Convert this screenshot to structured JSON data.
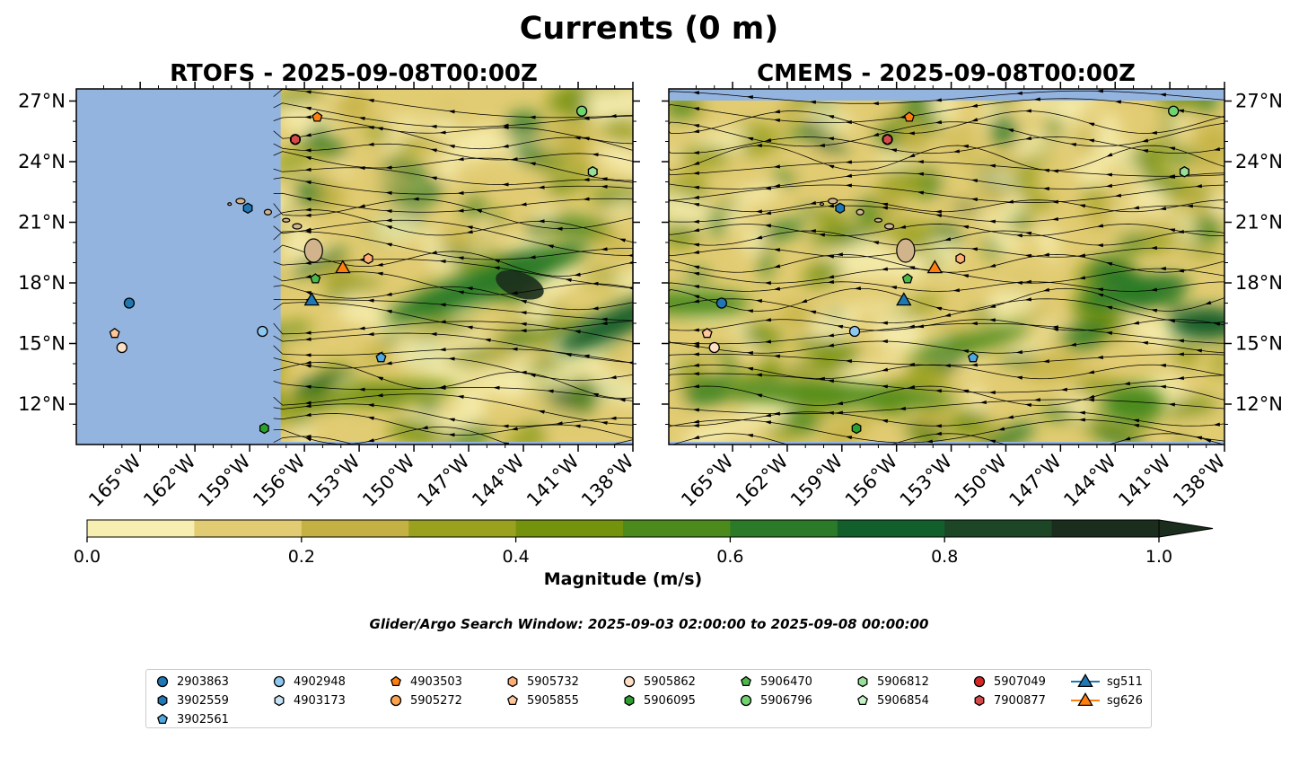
{
  "chart_data": {
    "type": "heatmap",
    "title": "Currents (0 m)",
    "panels": [
      {
        "title": "RTOFS - 2025-09-08T00:00Z",
        "model": "RTOFS"
      },
      {
        "title": "CMEMS - 2025-09-08T00:00Z",
        "model": "CMEMS"
      }
    ],
    "lon_range": [
      -168.5,
      -138
    ],
    "lat_range": [
      10,
      27.6
    ],
    "x_ticks": [
      "165°W",
      "162°W",
      "159°W",
      "156°W",
      "153°W",
      "150°W",
      "147°W",
      "144°W",
      "141°W",
      "138°W"
    ],
    "x_tick_values": [
      -165,
      -162,
      -159,
      -156,
      -153,
      -150,
      -147,
      -144,
      -141,
      -138
    ],
    "y_ticks": [
      "27°N",
      "24°N",
      "21°N",
      "18°N",
      "15°N",
      "12°N"
    ],
    "y_tick_values": [
      27,
      24,
      21,
      18,
      15,
      12
    ],
    "colorbar": {
      "label": "Magnitude (m/s)",
      "range": [
        0,
        1.0
      ],
      "ticks": [
        "0.0",
        "0.2",
        "0.4",
        "0.6",
        "0.8",
        "1.0"
      ],
      "tick_values": [
        0,
        0.2,
        0.4,
        0.6,
        0.8,
        1.0
      ],
      "levels": [
        0,
        0.1,
        0.2,
        0.3,
        0.4,
        0.5,
        0.6,
        0.7,
        0.8,
        0.9,
        1.0
      ],
      "colors": [
        "#f7eeb1",
        "#e2cc73",
        "#c3b143",
        "#99a11f",
        "#75920c",
        "#4c8a1c",
        "#2b7a27",
        "#135f2c",
        "#1c4626",
        "#1b2d1c"
      ],
      "extend": "max"
    },
    "platforms": [
      {
        "id": "2903863",
        "marker": "circle",
        "color": "#1f77b4",
        "lon": -165.6,
        "lat": 17.0
      },
      {
        "id": "3902559",
        "marker": "hexagon",
        "color": "#1f77b4",
        "lon": -159.1,
        "lat": 21.7
      },
      {
        "id": "3902561",
        "marker": "pentagon",
        "color": "#4fa8e0",
        "lon": -151.8,
        "lat": 14.3
      },
      {
        "id": "4902948",
        "marker": "circle",
        "color": "#8fc8ef",
        "lon": -158.3,
        "lat": 15.6
      },
      {
        "id": "4903173",
        "marker": "hexagon",
        "color": "#c6e3f7",
        "lon": -140.2,
        "lat": 23.5
      },
      {
        "id": "4903503",
        "marker": "pentagon",
        "color": "#ff7f0e",
        "lon": -155.3,
        "lat": 26.2
      },
      {
        "id": "5905272",
        "marker": "circle",
        "color": "#ffa24c",
        "lon": -141.0,
        "lat": 26.5
      },
      {
        "id": "5905732",
        "marker": "hexagon",
        "color": "#ffad72",
        "lon": -152.5,
        "lat": 19.2
      },
      {
        "id": "5905855",
        "marker": "pentagon",
        "color": "#ffc79a",
        "lon": -166.4,
        "lat": 15.5
      },
      {
        "id": "5905862",
        "marker": "circle",
        "color": "#fde0c5",
        "lon": -166.0,
        "lat": 14.8
      },
      {
        "id": "5906095",
        "marker": "hexagon",
        "color": "#2ca02c",
        "lon": -158.2,
        "lat": 10.8
      },
      {
        "id": "5906470",
        "marker": "pentagon",
        "color": "#4cb84c",
        "lon": -155.4,
        "lat": 18.2
      },
      {
        "id": "5906796",
        "marker": "circle",
        "color": "#6fd36f",
        "lon": -140.8,
        "lat": 26.5
      },
      {
        "id": "5906812",
        "marker": "hexagon",
        "color": "#98e098",
        "lon": -140.2,
        "lat": 23.5
      },
      {
        "id": "5906854",
        "marker": "pentagon",
        "color": "#c6f2c6",
        "lon": -140.8,
        "lat": 26.5
      },
      {
        "id": "5907049",
        "marker": "circle",
        "color": "#d62728",
        "lon": -156.5,
        "lat": 25.1
      },
      {
        "id": "7900877",
        "marker": "hexagon",
        "color": "#d84a4a",
        "lon": -156.5,
        "lat": 25.1
      },
      {
        "id": "sg511",
        "marker": "triangle",
        "color": "#1f77b4",
        "lon": -155.6,
        "lat": 17.1
      },
      {
        "id": "sg626",
        "marker": "triangle",
        "color": "#ff7f0e",
        "lon": -153.9,
        "lat": 18.7
      }
    ],
    "legend_placement": "bottom-center"
  },
  "colorbar_label": "Magnitude (m/s)",
  "search_window": "Glider/Argo Search Window: 2025-09-03 02:00:00 to 2025-09-08 00:00:00",
  "legend": [
    {
      "label": "2903863",
      "marker": "circle",
      "color": "#1f77b4"
    },
    {
      "label": "3902559",
      "marker": "hexagon",
      "color": "#1f77b4"
    },
    {
      "label": "3902561",
      "marker": "pentagon",
      "color": "#4fa8e0"
    },
    {
      "label": "4902948",
      "marker": "circle",
      "color": "#8fc8ef"
    },
    {
      "label": "4903173",
      "marker": "hexagon",
      "color": "#c6e3f7"
    },
    {
      "label": "4903503",
      "marker": "pentagon",
      "color": "#ff7f0e"
    },
    {
      "label": "5905272",
      "marker": "circle",
      "color": "#ffa24c"
    },
    {
      "label": "5905732",
      "marker": "hexagon",
      "color": "#ffad72"
    },
    {
      "label": "5905855",
      "marker": "pentagon",
      "color": "#ffc79a"
    },
    {
      "label": "5905862",
      "marker": "circle",
      "color": "#fde0c5"
    },
    {
      "label": "5906095",
      "marker": "hexagon",
      "color": "#2ca02c"
    },
    {
      "label": "5906470",
      "marker": "pentagon",
      "color": "#4cb84c"
    },
    {
      "label": "5906796",
      "marker": "circle",
      "color": "#6fd36f"
    },
    {
      "label": "5906812",
      "marker": "hexagon",
      "color": "#98e098"
    },
    {
      "label": "5906854",
      "marker": "pentagon",
      "color": "#c6f2c6"
    },
    {
      "label": "5907049",
      "marker": "circle",
      "color": "#d62728"
    },
    {
      "label": "7900877",
      "marker": "hexagon",
      "color": "#d84a4a"
    },
    {
      "label": "sg511",
      "marker": "triangle-line",
      "color": "#1f77b4"
    },
    {
      "label": "sg626",
      "marker": "triangle-line",
      "color": "#ff7f0e"
    }
  ]
}
